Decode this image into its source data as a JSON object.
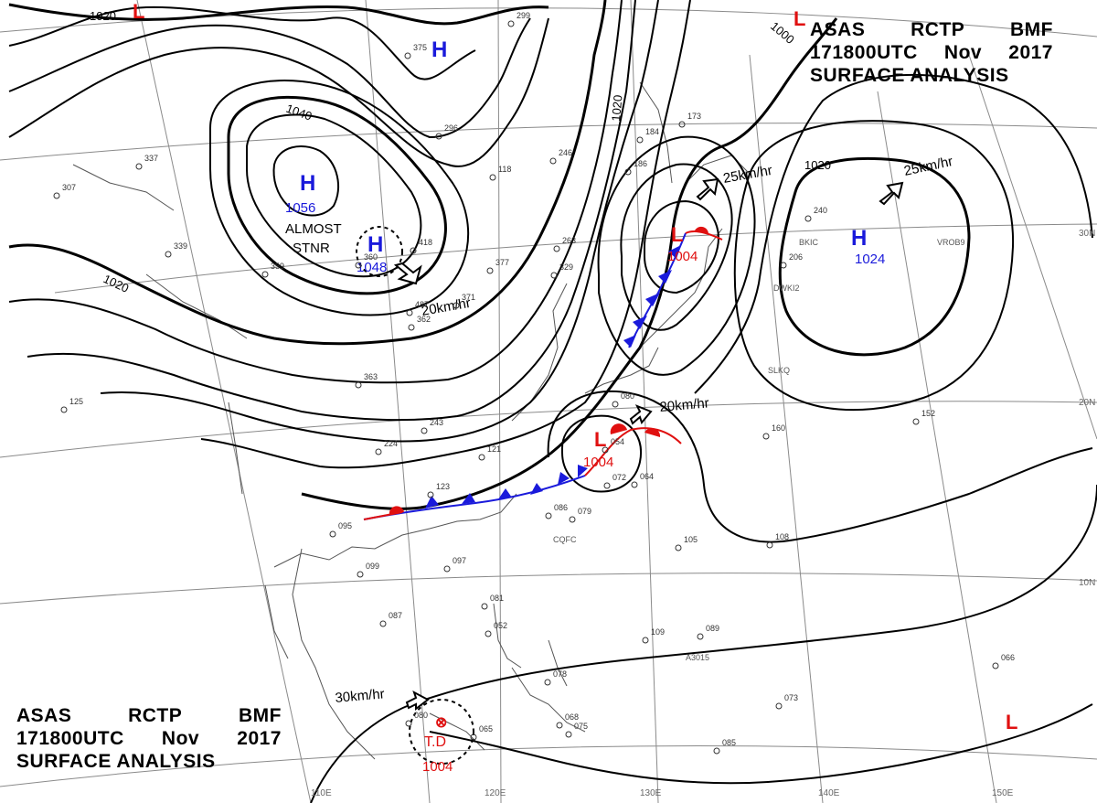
{
  "header": {
    "agency": "ASAS",
    "station": "RCTP",
    "office": "BMF",
    "valid_time": "171800UTC",
    "month": "Nov",
    "year": "2017",
    "product": "SURFACE ANALYSIS"
  },
  "isobar_labels": [
    "1020",
    "1000",
    "1020",
    "1040",
    "1020",
    "1020"
  ],
  "pressure_centers": [
    {
      "type": "H",
      "value": "1056",
      "color": "#1a1adb"
    },
    {
      "type": "H",
      "value": "1048",
      "color": "#1a1adb"
    },
    {
      "type": "H",
      "value": "",
      "color": "#1a1adb"
    },
    {
      "type": "H",
      "value": "1024",
      "color": "#1a1adb"
    },
    {
      "type": "L",
      "value": "1004",
      "color": "#e01010"
    },
    {
      "type": "L",
      "value": "1004",
      "color": "#e01010"
    },
    {
      "type": "L",
      "value": "",
      "color": "#e01010"
    },
    {
      "type": "L",
      "value": "",
      "color": "#e01010"
    },
    {
      "type": "L",
      "value": "",
      "color": "#e01010"
    }
  ],
  "tropical_depression": {
    "label": "T.D",
    "pressure": "1004"
  },
  "stationary_note": [
    "ALMOST",
    "STNR"
  ],
  "motion_labels": [
    "20km/hr",
    "25km/hr",
    "25km/hr",
    "20km/hr",
    "30km/hr"
  ],
  "lat_labels": [
    "30N",
    "20N",
    "10N"
  ],
  "lon_labels": [
    "110E",
    "120E",
    "130E",
    "140E",
    "150E"
  ],
  "station_ids": [
    "BKIC",
    "VROB9",
    "DWKI2",
    "SLKQ",
    "CQFC",
    "A3015"
  ],
  "station_numbers": [
    "299",
    "375",
    "296",
    "246",
    "118",
    "263",
    "377",
    "329",
    "371",
    "362",
    "418",
    "487",
    "360",
    "337",
    "307",
    "339",
    "359",
    "363",
    "243",
    "224",
    "121",
    "123",
    "095",
    "099",
    "097",
    "086",
    "079",
    "064",
    "054",
    "072",
    "080",
    "184",
    "173",
    "186",
    "240",
    "206",
    "160",
    "152",
    "105",
    "108",
    "109",
    "089",
    "081",
    "052",
    "078",
    "068",
    "075",
    "065",
    "080",
    "073",
    "066",
    "085",
    "087",
    "125"
  ],
  "colors": {
    "isobar": "#000000",
    "high": "#1a1adb",
    "low": "#e01010",
    "cold_front": "#1a1adb",
    "warm_front": "#e01010",
    "grid": "#8a8a8a",
    "coast": "#555555"
  }
}
